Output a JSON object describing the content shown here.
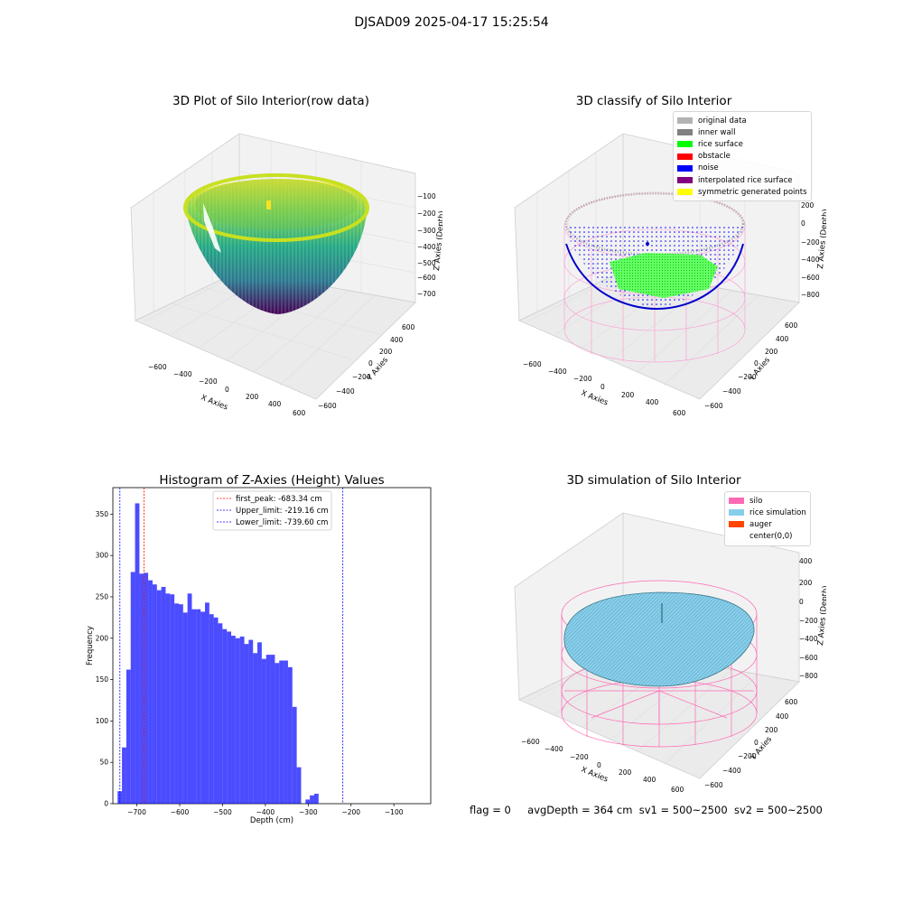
{
  "suptitle": "DJSAD09 2025-04-17 15:25:54",
  "panels": {
    "raw": {
      "title": "3D Plot of Silo Interior(row data)",
      "x_label": "X Axies",
      "y_label": "Y Axies",
      "z_label": "Z Axies (Depth)",
      "x_ticks": [
        "−600",
        "−400",
        "−200",
        "0",
        "200",
        "400",
        "600"
      ],
      "y_ticks": [
        "−600",
        "−400",
        "−200",
        "0",
        "200",
        "400",
        "600"
      ],
      "z_ticks": [
        "−100",
        "−200",
        "−300",
        "−400",
        "−500",
        "−600",
        "−700"
      ],
      "colormap": "viridis"
    },
    "classify": {
      "title": "3D classify of Silo Interior",
      "x_label": "X Axies",
      "y_label": "Y Axies",
      "z_label": "Z Axies (Depth)",
      "x_ticks": [
        "−600",
        "−400",
        "−200",
        "0",
        "200",
        "400",
        "600"
      ],
      "y_ticks": [
        "−600",
        "−400",
        "−200",
        "0",
        "200",
        "400",
        "600"
      ],
      "z_ticks": [
        "200",
        "0",
        "−200",
        "−400",
        "−600",
        "−800"
      ],
      "legend": [
        {
          "label": "original data",
          "color": "#b3b3b3"
        },
        {
          "label": "inner wall",
          "color": "#808080"
        },
        {
          "label": "rice surface",
          "color": "#00ff00"
        },
        {
          "label": "obstacle",
          "color": "#ff0000"
        },
        {
          "label": "noise",
          "color": "#0000ff"
        },
        {
          "label": "interpolated rice surface",
          "color": "#800080"
        },
        {
          "label": "symmetric generated points",
          "color": "#ffff00"
        }
      ]
    },
    "simulation": {
      "title": "3D simulation of Silo Interior",
      "x_label": "X Axies",
      "y_label": "Y Axies",
      "z_label": "Z Axies (Depth)",
      "x_ticks": [
        "−600",
        "−400",
        "−200",
        "0",
        "200",
        "400",
        "600"
      ],
      "y_ticks": [
        "−600",
        "−400",
        "−200",
        "0",
        "200",
        "400",
        "600"
      ],
      "z_ticks": [
        "400",
        "200",
        "0",
        "−200",
        "−400",
        "−600",
        "−800"
      ],
      "legend": [
        {
          "label": "silo",
          "color": "#ff69b4"
        },
        {
          "label": "rice simulation",
          "color": "#87ceeb"
        },
        {
          "label": "auger",
          "color": "#ff4500"
        },
        {
          "label": "center(0,0)",
          "color": "#ffffff"
        }
      ]
    }
  },
  "footer": {
    "flag": "flag = 0",
    "avg": "avgDepth = 364 cm",
    "sv1": "sv1 = 500~2500",
    "sv2": "sv2 = 500~2500"
  },
  "chart_data": [
    {
      "type": "bar",
      "title": "Histogram of Z-Axies (Height) Values",
      "xlabel": "Depth (cm)",
      "ylabel": "Frequency",
      "xlim": [
        -756,
        -14
      ],
      "ylim": [
        0,
        382
      ],
      "x_ticks": [
        -700,
        -600,
        -500,
        -400,
        -300,
        -200,
        -100
      ],
      "x_tick_labels": [
        "−700",
        "−600",
        "−500",
        "−400",
        "−300",
        "−200",
        "−100"
      ],
      "y_ticks": [
        0,
        50,
        100,
        150,
        200,
        250,
        300,
        350
      ],
      "bar_color": "#0000ff",
      "bar_opacity": 0.7,
      "bin_start": -745,
      "bin_width": 10.2,
      "values": [
        15,
        68,
        162,
        280,
        363,
        278,
        279,
        270,
        265,
        258,
        262,
        254,
        253,
        242,
        241,
        231,
        254,
        235,
        235,
        232,
        243,
        229,
        225,
        218,
        211,
        208,
        203,
        200,
        202,
        193,
        198,
        182,
        195,
        175,
        180,
        180,
        170,
        173,
        173,
        165,
        117,
        44,
        0,
        5,
        10,
        12
      ],
      "vlines": [
        {
          "label": "first_peak: -683.34 cm",
          "x": -683.34,
          "color": "#ff0000"
        },
        {
          "label": "Upper_limit: -219.16 cm",
          "x": -219.16,
          "color": "#0000ff"
        },
        {
          "label": "Lower_limit: -739.60 cm",
          "x": -739.6,
          "color": "#0000ff"
        }
      ],
      "legend_loc": "upper center"
    }
  ]
}
